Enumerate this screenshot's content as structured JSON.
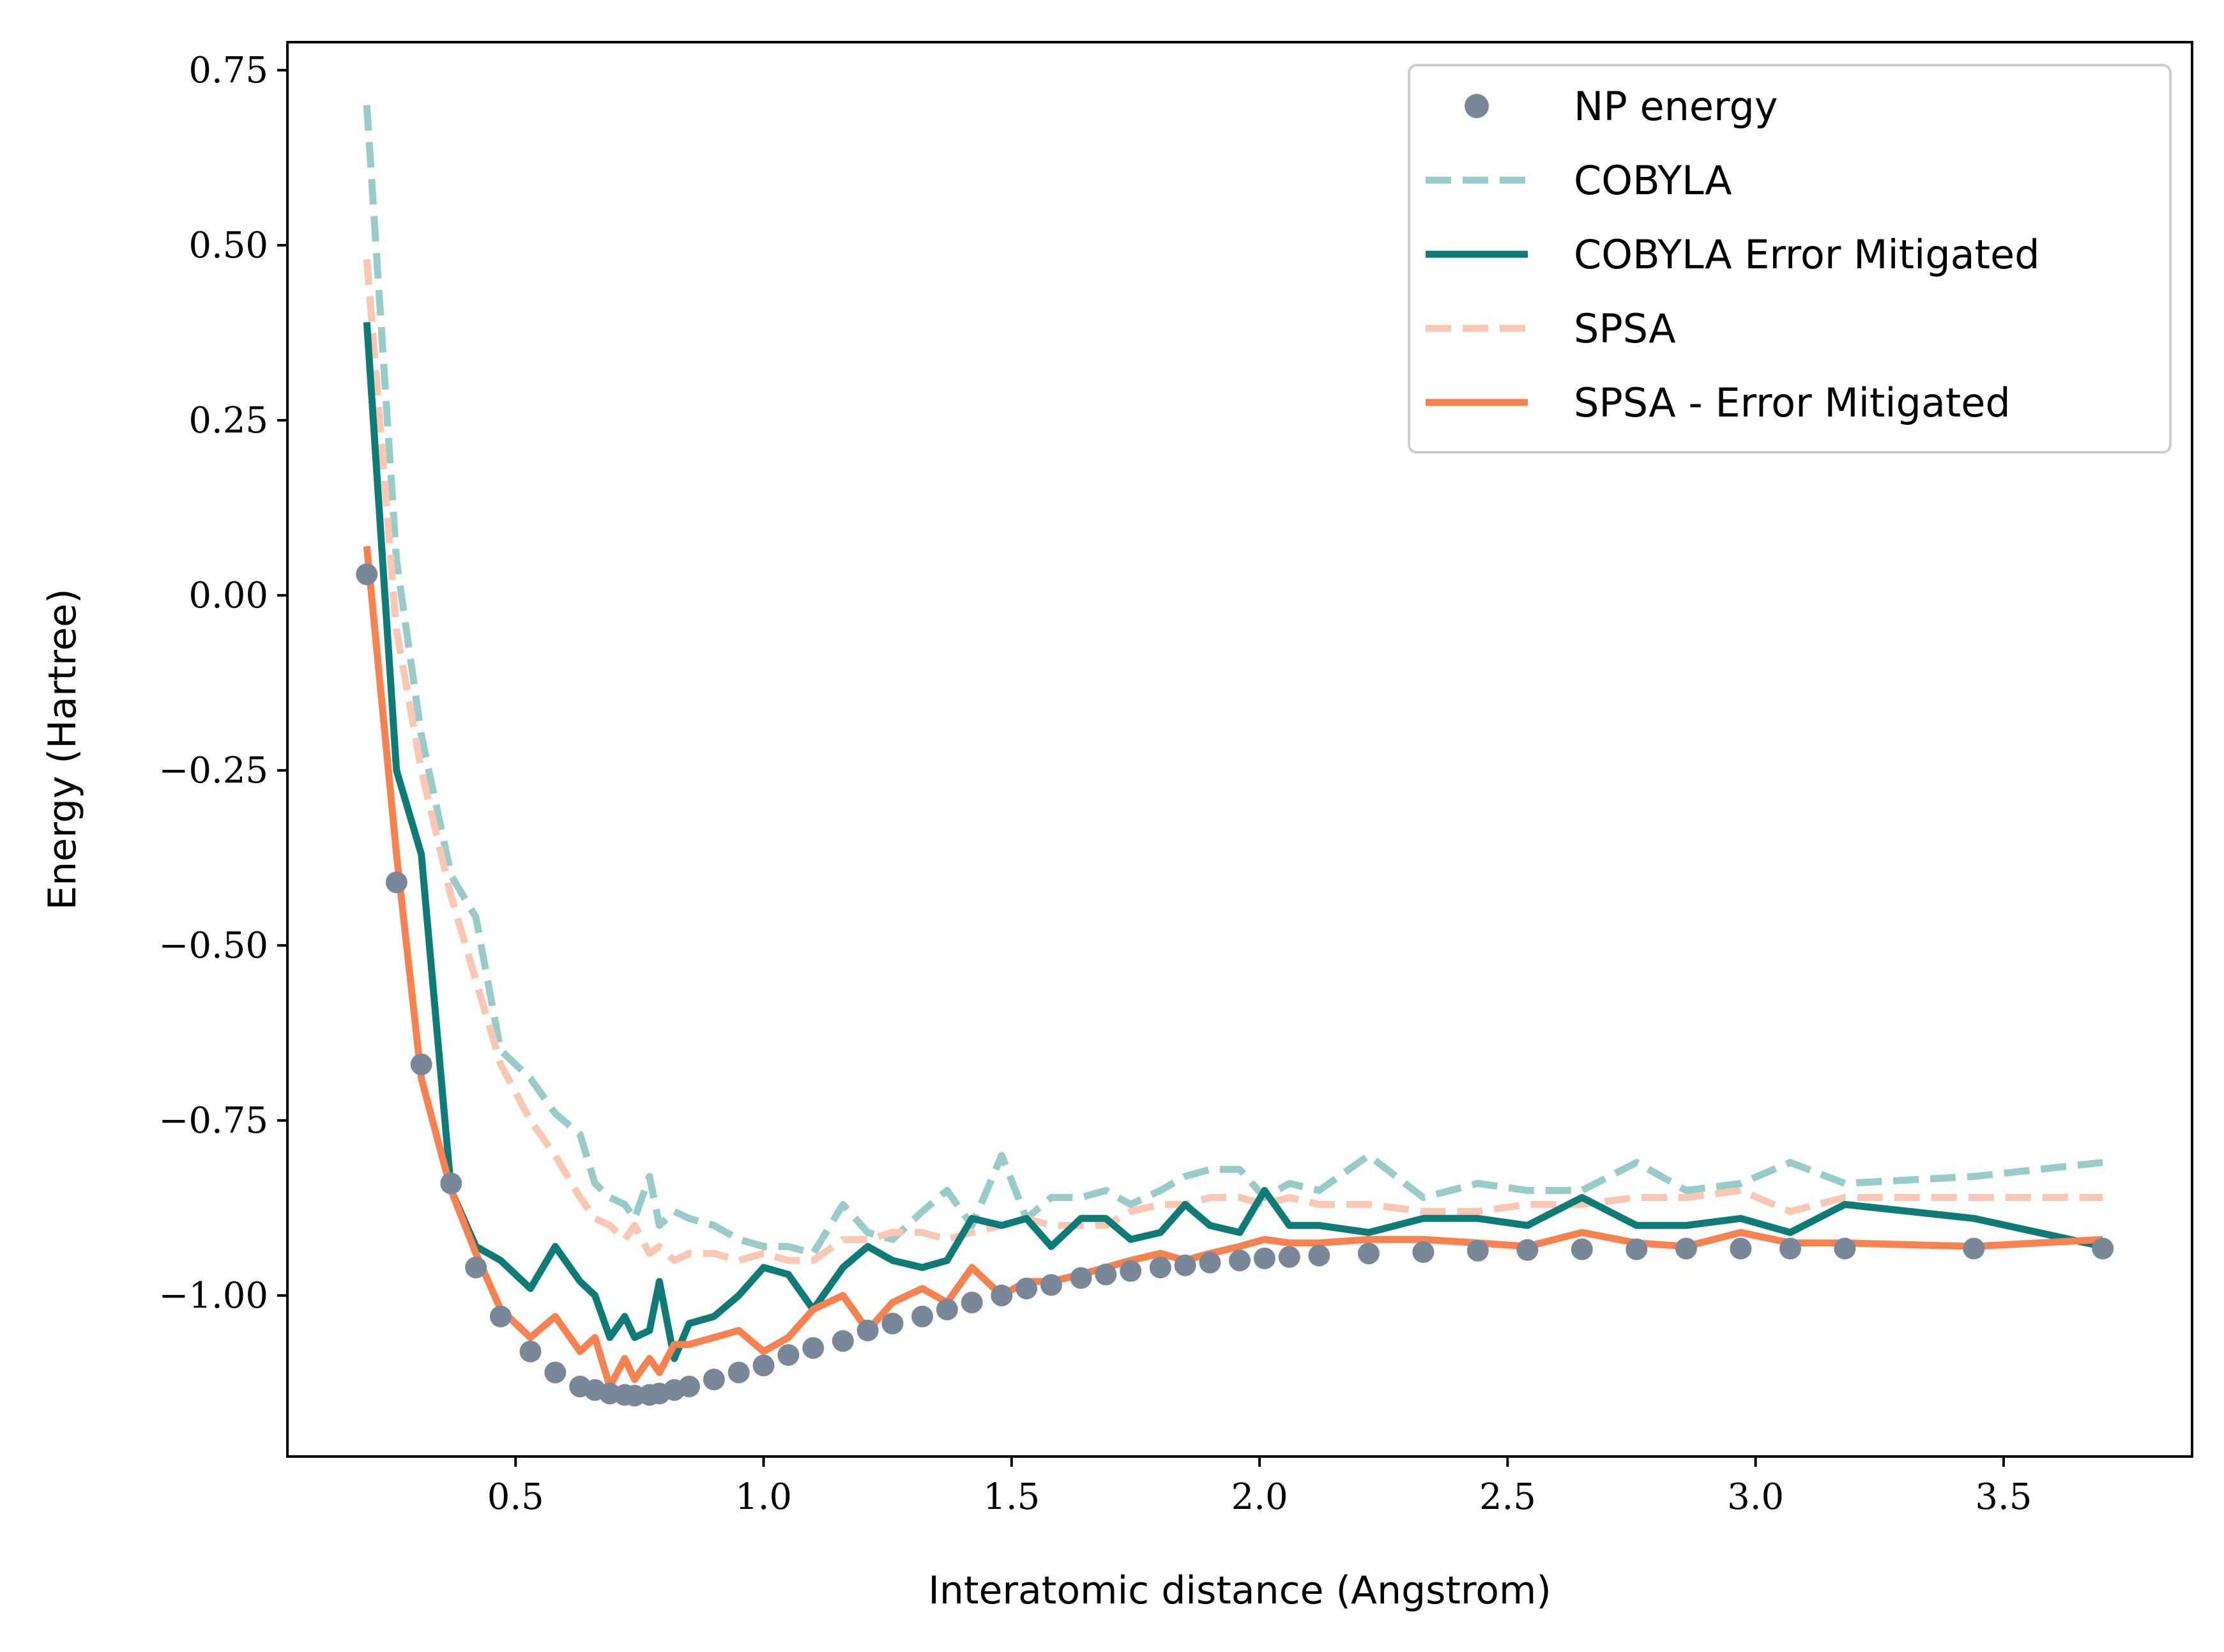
{
  "chart_data": {
    "type": "line",
    "xlabel": "Interatomic distance (Angstrom)",
    "ylabel": "Energy (Hartree)",
    "xlim": [
      0.04,
      3.88
    ],
    "ylim": [
      -1.23,
      0.79
    ],
    "xticks": [
      0.5,
      1.0,
      1.5,
      2.0,
      2.5,
      3.0,
      3.5
    ],
    "xtick_labels": [
      "0.5",
      "1.0",
      "1.5",
      "2.0",
      "2.5",
      "3.0",
      "3.5"
    ],
    "yticks": [
      0.75,
      0.5,
      0.25,
      0.0,
      -0.25,
      -0.5,
      -0.75,
      -1.0
    ],
    "ytick_labels": [
      "0.75",
      "0.50",
      "0.25",
      "0.00",
      "−0.25",
      "−0.50",
      "−0.75",
      "−1.00"
    ],
    "grid": false,
    "legend_position": "top-right",
    "series": [
      {
        "name": "NP energy",
        "style": "dots",
        "color": "#7a8799",
        "x": [
          0.2,
          0.26,
          0.31,
          0.37,
          0.42,
          0.47,
          0.53,
          0.58,
          0.63,
          0.66,
          0.69,
          0.72,
          0.74,
          0.77,
          0.79,
          0.82,
          0.85,
          0.9,
          0.95,
          1.0,
          1.05,
          1.1,
          1.16,
          1.21,
          1.26,
          1.32,
          1.37,
          1.42,
          1.48,
          1.53,
          1.58,
          1.64,
          1.69,
          1.74,
          1.8,
          1.85,
          1.9,
          1.96,
          2.01,
          2.06,
          2.12,
          2.22,
          2.33,
          2.44,
          2.54,
          2.65,
          2.76,
          2.86,
          2.97,
          3.07,
          3.18,
          3.44,
          3.7
        ],
        "y": [
          0.03,
          -0.41,
          -0.67,
          -0.84,
          -0.96,
          -1.03,
          -1.08,
          -1.11,
          -1.13,
          -1.135,
          -1.14,
          -1.142,
          -1.143,
          -1.142,
          -1.14,
          -1.135,
          -1.13,
          -1.12,
          -1.11,
          -1.1,
          -1.085,
          -1.075,
          -1.065,
          -1.05,
          -1.04,
          -1.03,
          -1.02,
          -1.01,
          -1.0,
          -0.99,
          -0.985,
          -0.975,
          -0.97,
          -0.965,
          -0.96,
          -0.957,
          -0.953,
          -0.95,
          -0.947,
          -0.945,
          -0.943,
          -0.94,
          -0.938,
          -0.936,
          -0.935,
          -0.934,
          -0.934,
          -0.933,
          -0.933,
          -0.933,
          -0.933,
          -0.933,
          -0.933
        ]
      },
      {
        "name": "COBYLA",
        "style": "dashed",
        "color": "#99cbc8",
        "x": [
          0.2,
          0.26,
          0.31,
          0.37,
          0.42,
          0.47,
          0.53,
          0.58,
          0.63,
          0.66,
          0.69,
          0.72,
          0.74,
          0.77,
          0.79,
          0.82,
          0.85,
          0.9,
          0.95,
          1.0,
          1.05,
          1.1,
          1.16,
          1.21,
          1.26,
          1.32,
          1.37,
          1.42,
          1.48,
          1.53,
          1.58,
          1.64,
          1.69,
          1.74,
          1.8,
          1.85,
          1.9,
          1.96,
          2.01,
          2.06,
          2.12,
          2.22,
          2.33,
          2.44,
          2.54,
          2.65,
          2.76,
          2.86,
          2.97,
          3.07,
          3.18,
          3.44,
          3.7
        ],
        "y": [
          0.7,
          0.05,
          -0.2,
          -0.4,
          -0.46,
          -0.65,
          -0.69,
          -0.74,
          -0.77,
          -0.84,
          -0.86,
          -0.87,
          -0.89,
          -0.83,
          -0.9,
          -0.88,
          -0.89,
          -0.9,
          -0.92,
          -0.93,
          -0.93,
          -0.94,
          -0.87,
          -0.91,
          -0.92,
          -0.88,
          -0.85,
          -0.9,
          -0.8,
          -0.89,
          -0.86,
          -0.86,
          -0.85,
          -0.87,
          -0.85,
          -0.83,
          -0.82,
          -0.82,
          -0.86,
          -0.84,
          -0.85,
          -0.8,
          -0.86,
          -0.84,
          -0.85,
          -0.85,
          -0.81,
          -0.85,
          -0.84,
          -0.81,
          -0.84,
          -0.83,
          -0.81
        ]
      },
      {
        "name": "COBYLA Error Mitigated",
        "style": "solid",
        "color": "#0f7b76",
        "x": [
          0.2,
          0.26,
          0.31,
          0.37,
          0.42,
          0.47,
          0.53,
          0.58,
          0.63,
          0.66,
          0.69,
          0.72,
          0.74,
          0.77,
          0.79,
          0.82,
          0.85,
          0.9,
          0.95,
          1.0,
          1.05,
          1.1,
          1.16,
          1.21,
          1.26,
          1.32,
          1.37,
          1.42,
          1.48,
          1.53,
          1.58,
          1.64,
          1.69,
          1.74,
          1.8,
          1.85,
          1.9,
          1.96,
          2.01,
          2.06,
          2.12,
          2.22,
          2.33,
          2.44,
          2.54,
          2.65,
          2.76,
          2.86,
          2.97,
          3.07,
          3.18,
          3.44,
          3.7
        ],
        "y": [
          0.39,
          -0.25,
          -0.37,
          -0.85,
          -0.93,
          -0.95,
          -0.99,
          -0.93,
          -0.98,
          -1.0,
          -1.06,
          -1.03,
          -1.06,
          -1.05,
          -0.98,
          -1.09,
          -1.04,
          -1.03,
          -1.0,
          -0.96,
          -0.97,
          -1.02,
          -0.96,
          -0.93,
          -0.95,
          -0.96,
          -0.95,
          -0.89,
          -0.9,
          -0.89,
          -0.93,
          -0.89,
          -0.89,
          -0.92,
          -0.91,
          -0.87,
          -0.9,
          -0.91,
          -0.85,
          -0.9,
          -0.9,
          -0.91,
          -0.89,
          -0.89,
          -0.9,
          -0.86,
          -0.9,
          -0.9,
          -0.89,
          -0.91,
          -0.87,
          -0.89,
          -0.93
        ]
      },
      {
        "name": "SPSA",
        "style": "dashed",
        "color": "#f9c7b3",
        "x": [
          0.2,
          0.26,
          0.31,
          0.37,
          0.42,
          0.47,
          0.53,
          0.58,
          0.63,
          0.66,
          0.69,
          0.72,
          0.74,
          0.77,
          0.79,
          0.82,
          0.85,
          0.9,
          0.95,
          1.0,
          1.05,
          1.1,
          1.16,
          1.21,
          1.26,
          1.32,
          1.37,
          1.42,
          1.48,
          1.53,
          1.58,
          1.64,
          1.69,
          1.74,
          1.8,
          1.85,
          1.9,
          1.96,
          2.01,
          2.06,
          2.12,
          2.22,
          2.33,
          2.44,
          2.54,
          2.65,
          2.76,
          2.86,
          2.97,
          3.07,
          3.18,
          3.44,
          3.7
        ],
        "y": [
          0.48,
          -0.05,
          -0.25,
          -0.43,
          -0.55,
          -0.67,
          -0.75,
          -0.8,
          -0.86,
          -0.89,
          -0.9,
          -0.92,
          -0.9,
          -0.94,
          -0.93,
          -0.95,
          -0.94,
          -0.94,
          -0.95,
          -0.94,
          -0.95,
          -0.95,
          -0.92,
          -0.92,
          -0.91,
          -0.91,
          -0.92,
          -0.91,
          -0.9,
          -0.89,
          -0.9,
          -0.9,
          -0.9,
          -0.88,
          -0.87,
          -0.87,
          -0.86,
          -0.86,
          -0.87,
          -0.86,
          -0.87,
          -0.87,
          -0.88,
          -0.88,
          -0.87,
          -0.87,
          -0.86,
          -0.86,
          -0.85,
          -0.88,
          -0.86,
          -0.86,
          -0.86
        ]
      },
      {
        "name": "SPSA - Error Mitigated",
        "style": "solid",
        "color": "#f7814f",
        "x": [
          0.2,
          0.26,
          0.31,
          0.37,
          0.42,
          0.47,
          0.53,
          0.58,
          0.63,
          0.66,
          0.69,
          0.72,
          0.74,
          0.77,
          0.79,
          0.82,
          0.85,
          0.9,
          0.95,
          1.0,
          1.05,
          1.1,
          1.16,
          1.21,
          1.26,
          1.32,
          1.37,
          1.42,
          1.48,
          1.53,
          1.58,
          1.64,
          1.69,
          1.74,
          1.8,
          1.85,
          1.9,
          1.96,
          2.01,
          2.06,
          2.12,
          2.22,
          2.33,
          2.44,
          2.54,
          2.65,
          2.76,
          2.86,
          2.97,
          3.07,
          3.18,
          3.44,
          3.7
        ],
        "y": [
          0.07,
          -0.37,
          -0.69,
          -0.85,
          -0.94,
          -1.02,
          -1.06,
          -1.03,
          -1.08,
          -1.06,
          -1.13,
          -1.09,
          -1.12,
          -1.09,
          -1.11,
          -1.07,
          -1.07,
          -1.06,
          -1.05,
          -1.08,
          -1.06,
          -1.02,
          -1.0,
          -1.05,
          -1.01,
          -0.99,
          -1.01,
          -0.96,
          -1.0,
          -0.98,
          -0.98,
          -0.97,
          -0.96,
          -0.95,
          -0.94,
          -0.95,
          -0.94,
          -0.93,
          -0.92,
          -0.925,
          -0.925,
          -0.92,
          -0.92,
          -0.925,
          -0.93,
          -0.91,
          -0.925,
          -0.93,
          -0.91,
          -0.925,
          -0.925,
          -0.93,
          -0.92
        ]
      }
    ]
  }
}
